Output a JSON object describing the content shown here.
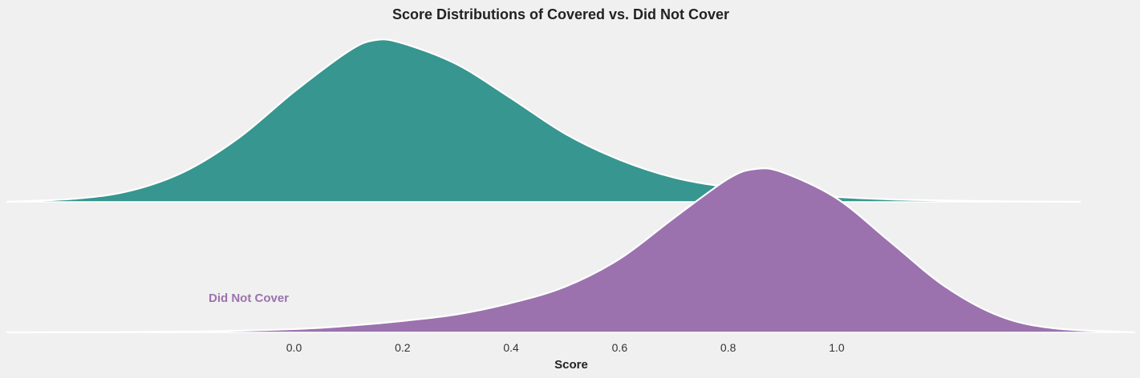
{
  "chart_data": {
    "type": "area",
    "title": "Score Distributions of Covered vs. Did Not Cover",
    "xlabel": "Score",
    "ylabel": "",
    "x_ticks": [
      0.0,
      0.2,
      0.4,
      0.6,
      0.8,
      1.0
    ],
    "x_tick_labels": [
      "0.0",
      "0.2",
      "0.4",
      "0.6",
      "0.8",
      "1.0"
    ],
    "xlim": [
      -0.53,
      1.55
    ],
    "grid": false,
    "legend": "none",
    "series": [
      {
        "color": "#37968f",
        "row": "top",
        "x": [
          -0.53,
          -0.4,
          -0.3,
          -0.2,
          -0.1,
          0.0,
          0.1,
          0.15,
          0.2,
          0.3,
          0.4,
          0.5,
          0.6,
          0.7,
          0.8,
          0.9,
          1.0,
          1.1,
          1.2,
          1.3,
          1.45
        ],
        "y": [
          0.0,
          0.02,
          0.07,
          0.19,
          0.4,
          0.68,
          0.93,
          1.0,
          0.98,
          0.85,
          0.64,
          0.42,
          0.26,
          0.15,
          0.09,
          0.05,
          0.03,
          0.015,
          0.008,
          0.003,
          0.0
        ]
      },
      {
        "label": "Did Not Cover",
        "color": "#9b72ae",
        "row": "bottom",
        "x": [
          -0.53,
          -0.2,
          0.0,
          0.1,
          0.2,
          0.3,
          0.4,
          0.5,
          0.6,
          0.7,
          0.8,
          0.85,
          0.9,
          1.0,
          1.1,
          1.2,
          1.3,
          1.4,
          1.55
        ],
        "y": [
          0.0,
          0.004,
          0.02,
          0.04,
          0.07,
          0.11,
          0.18,
          0.28,
          0.45,
          0.7,
          0.94,
          1.0,
          0.98,
          0.82,
          0.55,
          0.28,
          0.1,
          0.025,
          0.0
        ]
      }
    ]
  }
}
